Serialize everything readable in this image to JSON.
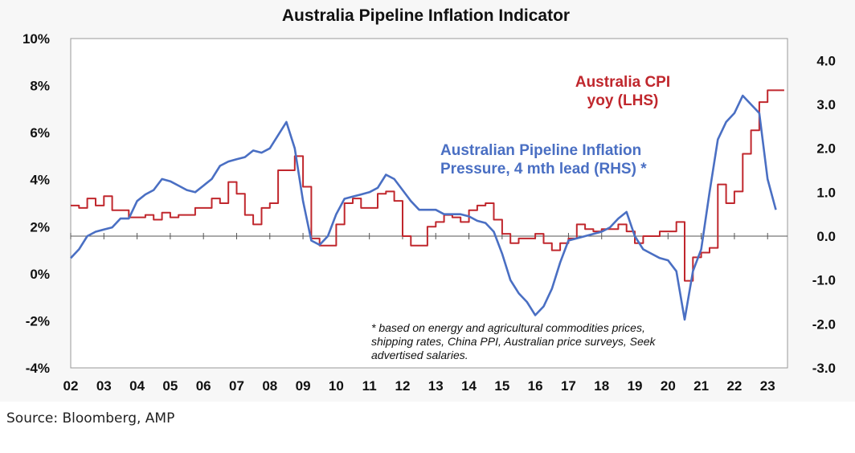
{
  "chart_data": {
    "type": "line",
    "title": "Australia Pipeline Inflation Indicator",
    "left_axis": {
      "min": -4,
      "max": 10,
      "ticks": [
        -4,
        -2,
        0,
        2,
        4,
        6,
        8,
        10
      ],
      "tick_labels": [
        "-4%",
        "-2%",
        "0%",
        "2%",
        "4%",
        "6%",
        "8%",
        "10%"
      ]
    },
    "right_axis": {
      "min": -3,
      "max": 4.5,
      "ticks": [
        -3,
        -2,
        -1,
        0,
        1,
        2,
        3,
        4
      ],
      "tick_labels": [
        "-3.0",
        "-2.0",
        "-1.0",
        "0.0",
        "1.0",
        "2.0",
        "3.0",
        "4.0"
      ]
    },
    "x_axis": {
      "min": 2002,
      "max": 2023.6,
      "tick_labels": [
        "02",
        "03",
        "04",
        "05",
        "06",
        "07",
        "08",
        "09",
        "10",
        "11",
        "12",
        "13",
        "14",
        "15",
        "16",
        "17",
        "18",
        "19",
        "20",
        "21",
        "22",
        "23"
      ]
    },
    "series": [
      {
        "name": "Australia CPI yoy (LHS)",
        "label_lines": [
          "Australia CPI",
          "yoy (LHS)"
        ],
        "axis": "left",
        "color": "#c0272d",
        "step": true,
        "x": [
          2002.0,
          2002.25,
          2002.5,
          2002.75,
          2003.0,
          2003.25,
          2003.5,
          2003.75,
          2004.0,
          2004.25,
          2004.5,
          2004.75,
          2005.0,
          2005.25,
          2005.5,
          2005.75,
          2006.0,
          2006.25,
          2006.5,
          2006.75,
          2007.0,
          2007.25,
          2007.5,
          2007.75,
          2008.0,
          2008.25,
          2008.5,
          2008.75,
          2009.0,
          2009.25,
          2009.5,
          2009.75,
          2010.0,
          2010.25,
          2010.5,
          2010.75,
          2011.0,
          2011.25,
          2011.5,
          2011.75,
          2012.0,
          2012.25,
          2012.5,
          2012.75,
          2013.0,
          2013.25,
          2013.5,
          2013.75,
          2014.0,
          2014.25,
          2014.5,
          2014.75,
          2015.0,
          2015.25,
          2015.5,
          2015.75,
          2016.0,
          2016.25,
          2016.5,
          2016.75,
          2017.0,
          2017.25,
          2017.5,
          2017.75,
          2018.0,
          2018.25,
          2018.5,
          2018.75,
          2019.0,
          2019.25,
          2019.5,
          2019.75,
          2020.0,
          2020.25,
          2020.5,
          2020.75,
          2021.0,
          2021.25,
          2021.5,
          2021.75,
          2022.0,
          2022.25,
          2022.5,
          2022.75,
          2023.0,
          2023.25
        ],
        "values": [
          2.9,
          2.8,
          3.2,
          2.9,
          3.3,
          2.7,
          2.7,
          2.4,
          2.4,
          2.5,
          2.3,
          2.6,
          2.4,
          2.5,
          2.5,
          2.8,
          2.8,
          3.2,
          3.0,
          3.9,
          3.4,
          2.5,
          2.1,
          2.8,
          3.0,
          4.4,
          4.4,
          5.0,
          3.7,
          1.5,
          1.2,
          1.2,
          2.1,
          3.0,
          3.2,
          2.8,
          2.8,
          3.4,
          3.5,
          3.1,
          1.6,
          1.2,
          1.2,
          2.0,
          2.2,
          2.5,
          2.4,
          2.2,
          2.7,
          2.9,
          3.0,
          2.3,
          1.7,
          1.3,
          1.5,
          1.5,
          1.7,
          1.3,
          1.0,
          1.3,
          1.5,
          2.1,
          1.9,
          1.8,
          1.9,
          1.9,
          2.1,
          1.8,
          1.3,
          1.6,
          1.6,
          1.8,
          1.8,
          2.2,
          -0.3,
          0.7,
          0.9,
          1.1,
          3.8,
          3.0,
          3.5,
          5.1,
          6.1,
          7.3,
          7.8,
          7.8
        ]
      },
      {
        "name": "Australian Pipeline Inflation Pressure, 4 mth lead (RHS) *",
        "label_lines": [
          "Australian Pipeline Inflation",
          "Pressure, 4 mth lead (RHS) *"
        ],
        "axis": "right",
        "color": "#4a6fc3",
        "step": false,
        "x": [
          2002.0,
          2002.25,
          2002.5,
          2002.75,
          2003.0,
          2003.25,
          2003.5,
          2003.75,
          2004.0,
          2004.25,
          2004.5,
          2004.75,
          2005.0,
          2005.25,
          2005.5,
          2005.75,
          2006.0,
          2006.25,
          2006.5,
          2006.75,
          2007.0,
          2007.25,
          2007.5,
          2007.75,
          2008.0,
          2008.25,
          2008.5,
          2008.75,
          2009.0,
          2009.25,
          2009.5,
          2009.75,
          2010.0,
          2010.25,
          2010.5,
          2010.75,
          2011.0,
          2011.25,
          2011.5,
          2011.75,
          2012.0,
          2012.25,
          2012.5,
          2012.75,
          2013.0,
          2013.25,
          2013.5,
          2013.75,
          2014.0,
          2014.25,
          2014.5,
          2014.75,
          2015.0,
          2015.25,
          2015.5,
          2015.75,
          2016.0,
          2016.25,
          2016.5,
          2016.75,
          2017.0,
          2017.25,
          2017.5,
          2017.75,
          2018.0,
          2018.25,
          2018.5,
          2018.75,
          2019.0,
          2019.25,
          2019.5,
          2019.75,
          2020.0,
          2020.25,
          2020.5,
          2020.75,
          2021.0,
          2021.25,
          2021.5,
          2021.75,
          2022.0,
          2022.25,
          2022.5,
          2022.75,
          2023.0,
          2023.25
        ],
        "values": [
          -0.5,
          -0.3,
          0.0,
          0.1,
          0.15,
          0.2,
          0.4,
          0.4,
          0.8,
          0.95,
          1.05,
          1.3,
          1.25,
          1.15,
          1.05,
          1.0,
          1.15,
          1.3,
          1.6,
          1.7,
          1.75,
          1.8,
          1.95,
          1.9,
          2.0,
          2.3,
          2.6,
          2.0,
          0.8,
          -0.1,
          -0.2,
          0.0,
          0.5,
          0.85,
          0.9,
          0.95,
          1.0,
          1.1,
          1.4,
          1.3,
          1.05,
          0.8,
          0.6,
          0.6,
          0.6,
          0.5,
          0.5,
          0.5,
          0.45,
          0.35,
          0.3,
          0.1,
          -0.4,
          -1.0,
          -1.3,
          -1.5,
          -1.8,
          -1.6,
          -1.2,
          -0.6,
          -0.1,
          -0.05,
          0.0,
          0.05,
          0.1,
          0.2,
          0.4,
          0.55,
          0.0,
          -0.3,
          -0.4,
          -0.5,
          -0.55,
          -0.8,
          -1.9,
          -0.8,
          -0.3,
          1.0,
          2.2,
          2.6,
          2.8,
          3.2,
          3.0,
          2.8,
          1.3,
          0.6
        ]
      }
    ],
    "footnote": [
      "* based on energy and agricultural commodities prices,",
      "shipping rates, China PPI, Australian price surveys, Seek",
      "advertised salaries."
    ],
    "legend": "inline labels",
    "grid": false
  },
  "source": "Source: Bloomberg, AMP"
}
